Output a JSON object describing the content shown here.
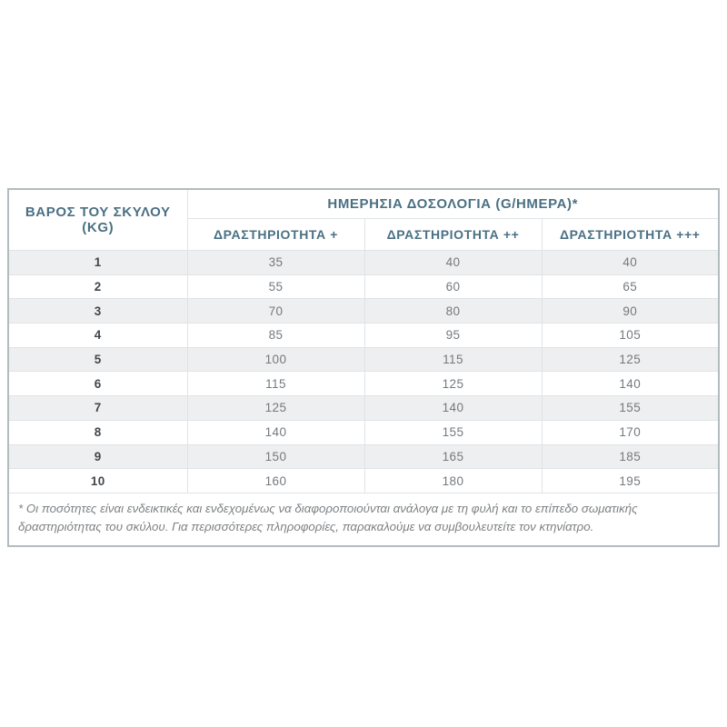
{
  "chart_data": {
    "type": "table",
    "weight_header": "ΒΑΡΟΣ ΤΟΥ ΣΚΥΛΟΥ (KG)",
    "dosage_group_header": "ΗΜΕΡΗΣΙΑ ΔΟΣΟΛΟΓΙΑ (G/ΗΜΕΡΑ)*",
    "activity_headers": [
      "ΔΡΑΣΤΗΡΙΟΤΗΤΑ +",
      "ΔΡΑΣΤΗΡΙΟΤΗΤΑ ++",
      "ΔΡΑΣΤΗΡΙΟΤΗΤΑ +++"
    ],
    "rows": [
      {
        "weight": "1",
        "values": [
          "35",
          "40",
          "40"
        ]
      },
      {
        "weight": "2",
        "values": [
          "55",
          "60",
          "65"
        ]
      },
      {
        "weight": "3",
        "values": [
          "70",
          "80",
          "90"
        ]
      },
      {
        "weight": "4",
        "values": [
          "85",
          "95",
          "105"
        ]
      },
      {
        "weight": "5",
        "values": [
          "100",
          "115",
          "125"
        ]
      },
      {
        "weight": "6",
        "values": [
          "115",
          "125",
          "140"
        ]
      },
      {
        "weight": "7",
        "values": [
          "125",
          "140",
          "155"
        ]
      },
      {
        "weight": "8",
        "values": [
          "140",
          "155",
          "170"
        ]
      },
      {
        "weight": "9",
        "values": [
          "150",
          "165",
          "185"
        ]
      },
      {
        "weight": "10",
        "values": [
          "160",
          "180",
          "195"
        ]
      }
    ],
    "footnote": "* Οι ποσότητες είναι ενδεικτικές και ενδεχομένως να διαφοροποιούνται ανάλογα με τη φυλή και το επίπεδο σωματικής δραστηριότητας του σκύλου. Για περισσότερες πληροφορίες, παρακαλούμε να συμβουλευτείτε τον κτηνίατρο."
  },
  "colors": {
    "header_text": "#4a7083",
    "shaded_row": "#edeff0",
    "outer_border": "#b2bbbe",
    "inner_border": "#e0e3e5",
    "value_text": "#76797c",
    "weight_text": "#43474a",
    "footnote_text": "#7d8184"
  }
}
